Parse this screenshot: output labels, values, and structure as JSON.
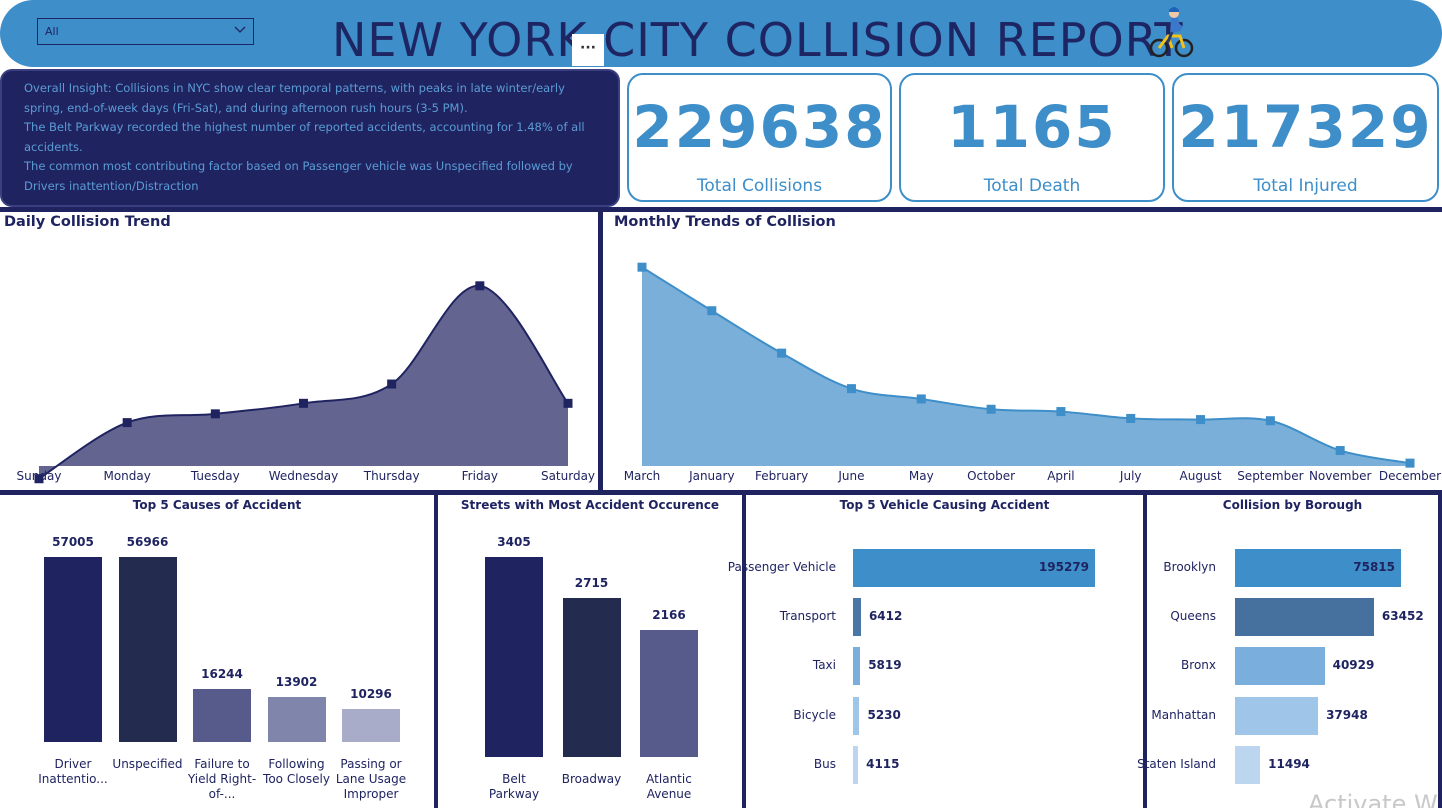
{
  "header": {
    "title": "NEW YORK CITY COLLISION REPORT",
    "filter_value": "All",
    "more_label": "···",
    "cyclist_icon": "cyclist-icon"
  },
  "insight": {
    "line1": "Overall Insight: Collisions in NYC show clear temporal patterns, with peaks in late winter/early spring, end-of-week days (Fri-Sat), and during afternoon rush hours (3-5 PM).",
    "line2": "The Belt Parkway recorded the highest number of reported accidents, accounting for 1.48% of all accidents.",
    "line3": "The common most contributing factor based on Passenger vehicle was Unspecified followed by Drivers inattention/Distraction"
  },
  "kpis": [
    {
      "value": "229638",
      "label": "Total Collisions"
    },
    {
      "value": "1165",
      "label": "Total Death"
    },
    {
      "value": "217329",
      "label": "Total Injured"
    }
  ],
  "colors": {
    "navy": "#1f2461",
    "accent_blue": "#3d8ec9",
    "daily_fill": "#636590",
    "monthly_fill": "#7aafd9"
  },
  "watermark": "Activate W",
  "chart_data": [
    {
      "type": "area",
      "title": "Daily Collision Trend",
      "x": [
        "Sunday",
        "Monday",
        "Tuesday",
        "Wednesday",
        "Thursday",
        "Friday",
        "Saturday"
      ],
      "series": [
        {
          "values": [
            28300,
            31500,
            32000,
            32600,
            33700,
            39300,
            32600
          ]
        }
      ],
      "ylim": [
        28000,
        41000
      ]
    },
    {
      "type": "area",
      "title": "Monthly Trends of Collision",
      "x": [
        "March",
        "January",
        "February",
        "June",
        "May",
        "October",
        "April",
        "July",
        "August",
        "September",
        "November",
        "December"
      ],
      "series": [
        {
          "values": [
            32500,
            28700,
            25000,
            21900,
            21000,
            20100,
            19900,
            19300,
            19200,
            19100,
            16500,
            15400
          ]
        }
      ],
      "ylim": [
        14800,
        34000
      ]
    },
    {
      "type": "bar",
      "title": "Top 5 Causes of Accident",
      "categories": [
        "Driver Inattentio...",
        "Unspecified",
        "Failure to Yield Right-of-...",
        "Following Too Closely",
        "Passing or Lane Usage Improper"
      ],
      "values": [
        57005,
        56966,
        16244,
        13902,
        10296
      ],
      "colors": [
        "#1f2461",
        "#232b4f",
        "#565b8c",
        "#7f85ab",
        "#a8acc8"
      ]
    },
    {
      "type": "bar",
      "title": "Streets with Most Accident Occurence",
      "categories": [
        "Belt Parkway",
        "Broadway",
        "Atlantic Avenue"
      ],
      "values": [
        3405,
        2715,
        2166
      ],
      "colors": [
        "#1f2461",
        "#232b4f",
        "#565b8c"
      ]
    },
    {
      "type": "bar",
      "orientation": "horizontal",
      "title": "Top 5 Vehicle Causing Accident",
      "categories": [
        "Passenger Vehicle",
        "Transport",
        "Taxi",
        "Bicycle",
        "Bus"
      ],
      "values": [
        195279,
        6412,
        5819,
        5230,
        4115
      ],
      "colors": [
        "#3d8ec9",
        "#4a76a8",
        "#7aaedd",
        "#9fc5e8",
        "#bcd6ef"
      ]
    },
    {
      "type": "bar",
      "orientation": "horizontal",
      "title": "Collision by Borough",
      "categories": [
        "Brooklyn",
        "Queens",
        "Bronx",
        "Manhattan",
        "Staten Island"
      ],
      "values": [
        75815,
        63452,
        40929,
        37948,
        11494
      ],
      "colors": [
        "#3d8ec9",
        "#46719e",
        "#7aaedd",
        "#9fc5e8",
        "#bcd6ef"
      ]
    }
  ]
}
